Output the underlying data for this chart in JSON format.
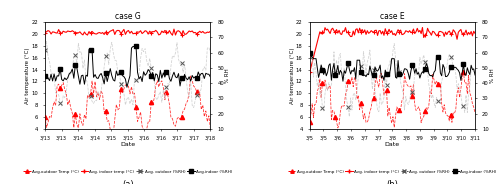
{
  "panel_a": {
    "title": "case G",
    "xlabel": "Date",
    "ylabel_left": "Air temperature (°C)",
    "ylabel_right": "% RH",
    "ylim_left": [
      4,
      22
    ],
    "ylim_right": [
      10,
      80
    ],
    "yticks_left": [
      4,
      6,
      8,
      10,
      12,
      14,
      16,
      18,
      20,
      22
    ],
    "yticks_right": [
      10,
      20,
      30,
      40,
      50,
      60,
      70,
      80
    ],
    "xtick_labels": [
      "3/13",
      "3/13",
      "3/14",
      "3/14",
      "3/15",
      "3/15",
      "3/16",
      "3/16",
      "3/17",
      "3/17",
      "3/18"
    ],
    "n_points": 110,
    "outdoor_temp_base": 8.0,
    "outdoor_temp_amp": 3.5,
    "outdoor_temp_period": 22,
    "indoor_temp_base": 20.3,
    "indoor_temp_noise": 0.25,
    "outdoor_rh_base": 44,
    "outdoor_rh_amp": 17,
    "outdoor_rh_period": 22,
    "indoor_rh_base": 45,
    "indoor_rh_noise": 2.5
  },
  "panel_b": {
    "title": "case E",
    "xlabel": "Date",
    "ylabel_left": "Air temperature (°C)",
    "ylabel_right": "% RH",
    "ylim_left": [
      4,
      22
    ],
    "ylim_right": [
      10,
      80
    ],
    "yticks_left": [
      4,
      6,
      8,
      10,
      12,
      14,
      16,
      18,
      20,
      22
    ],
    "yticks_right": [
      10,
      20,
      30,
      40,
      50,
      60,
      70,
      80
    ],
    "xtick_labels": [
      "3/5",
      "3/5",
      "3/6",
      "3/6",
      "3/7",
      "3/7",
      "3/8",
      "3/8",
      "3/9",
      "3/9",
      "3/10",
      "3/10",
      "3/11"
    ],
    "n_points": 130,
    "outdoor_temp_base": 9.0,
    "outdoor_temp_amp": 3.5,
    "outdoor_temp_period": 22,
    "indoor_temp_base": 20.3,
    "indoor_temp_noise": 0.4,
    "outdoor_rh_base": 42,
    "outdoor_rh_amp": 16,
    "outdoor_rh_period": 22,
    "indoor_rh_base": 47,
    "indoor_rh_noise": 3.0
  },
  "colors": {
    "outdoor_temp": "#FF0000",
    "indoor_temp": "#FF0000",
    "outdoor_rh": "#AAAAAA",
    "indoor_rh": "#000000"
  },
  "legend_labels": [
    "Avg.outdoor Temp (°C)",
    "Avg. indoor temp (°C)",
    "Avg. outdoor (%RH)",
    "Avg.indoor (%RH)"
  ],
  "subtitle_a": "(a)",
  "subtitle_b": "(b)",
  "marker_step_a": 10,
  "marker_step_b": 10
}
